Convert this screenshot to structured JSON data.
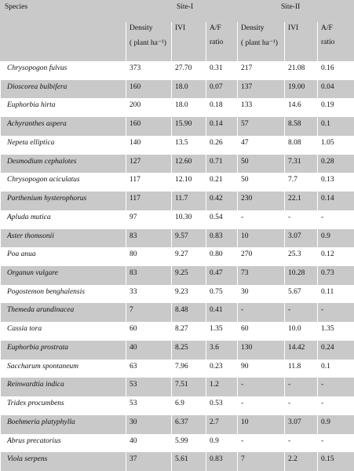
{
  "table": {
    "header": {
      "species": "Species",
      "sites": [
        "Site-I",
        "Site-II"
      ],
      "columns": [
        [
          "Density",
          "( plant ha⁻¹)"
        ],
        [
          "IVI"
        ],
        [
          "A/F",
          "ratio"
        ],
        [
          "Density",
          "( plant ha⁻¹)"
        ],
        [
          "IVI"
        ],
        [
          "A/F",
          "ratio"
        ]
      ]
    },
    "rows": [
      [
        "Chrysopogon fulvus",
        "373",
        "27.70",
        "0.31",
        "217",
        "21.08",
        "0.16"
      ],
      [
        "Dioscorea bulbifera",
        "160",
        "18.0",
        "0.07",
        "137",
        "19.00",
        "0.04"
      ],
      [
        "Euphorbia hirta",
        "200",
        "18.0",
        "0.18",
        "133",
        "14.6",
        "0.19"
      ],
      [
        "Achyranthes aspera",
        "160",
        "15.90",
        "0.14",
        "57",
        "8.58",
        "0.1"
      ],
      [
        "Nepeta elliptica",
        "140",
        "13.5",
        "0.26",
        "47",
        "8.08",
        "1.05"
      ],
      [
        "Desmodium cephalotes",
        "127",
        "12.60",
        "0.71",
        "50",
        "7.31",
        "0.28"
      ],
      [
        "Chrysopogon aciculatus",
        "117",
        "12.10",
        "0.21",
        "50",
        "7.7",
        "0.13"
      ],
      [
        "Parthenium hysterophorus",
        "117",
        "11.7",
        "0.42",
        "230",
        "22.1",
        "0.14"
      ],
      [
        "Apluda mutica",
        "97",
        "10.30",
        "0.54",
        "-",
        "-",
        "-"
      ],
      [
        "Aster thomsonii",
        "83",
        "9.57",
        "0.83",
        "10",
        "3.07",
        "0.9"
      ],
      [
        "Poa anua",
        "80",
        "9.27",
        "0.80",
        "270",
        "25.3",
        "0.12"
      ],
      [
        "Organun vulgare",
        "83",
        "9.25",
        "0.47",
        "73",
        "10.28",
        "0.73"
      ],
      [
        "Pogostemon benghalensis",
        "33",
        "9.23",
        "0.75",
        "30",
        "5.67",
        "0.11"
      ],
      [
        "Themeda arundinacea",
        "7",
        "8.48",
        "0.41",
        "-",
        "-",
        "-"
      ],
      [
        "Cassia tora",
        "60",
        "8.27",
        "1.35",
        "60",
        "10.0",
        "1.35"
      ],
      [
        "Euphorbia prostrata",
        "40",
        "8.25",
        "3.6",
        "130",
        "14.42",
        "0.24"
      ],
      [
        "Saccharum spontaneum",
        "63",
        "7.96",
        "0.23",
        "90",
        "11.8",
        "0.1"
      ],
      [
        "Reinwardtia indica",
        "53",
        "7.51",
        "1.2",
        "-",
        "-",
        "-"
      ],
      [
        "Tridex procumbens",
        "53",
        "6.9",
        "0.53",
        "-",
        "-",
        "-"
      ],
      [
        "Boehmeria platyphylla",
        "30",
        "6.37",
        "2.7",
        "10",
        "3.07",
        "0.9"
      ],
      [
        "Abrus precatorius",
        "40",
        "5.99",
        "0.9",
        "-",
        "-",
        "-"
      ],
      [
        "Viola serpens",
        "37",
        "5.61",
        "0.83",
        "7",
        "2.2",
        "0.15"
      ]
    ]
  }
}
